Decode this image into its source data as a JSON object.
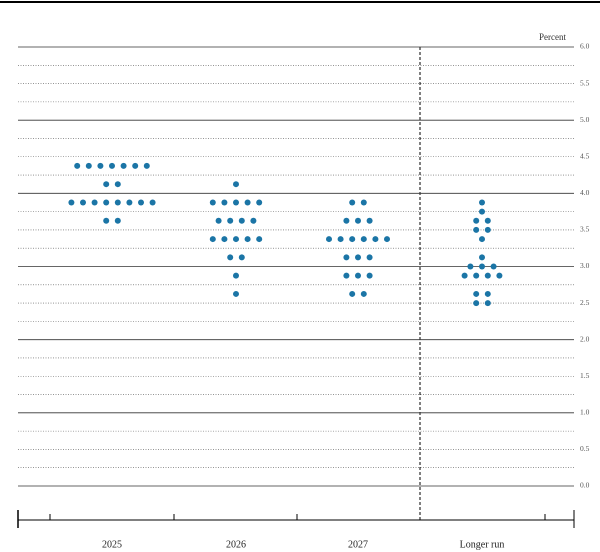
{
  "chart_data": {
    "type": "dot",
    "y_axis_label": "Percent",
    "categories": [
      "2025",
      "2026",
      "2027",
      "Longer run"
    ],
    "values": [
      [
        4.375,
        4.375,
        4.375,
        4.375,
        4.375,
        4.375,
        4.375,
        4.125,
        4.125,
        3.875,
        3.875,
        3.875,
        3.875,
        3.875,
        3.875,
        3.875,
        3.875,
        3.625,
        3.625
      ],
      [
        4.125,
        3.875,
        3.875,
        3.875,
        3.875,
        3.875,
        3.625,
        3.625,
        3.625,
        3.625,
        3.375,
        3.375,
        3.375,
        3.375,
        3.375,
        3.125,
        3.125,
        2.875,
        2.625
      ],
      [
        3.875,
        3.875,
        3.625,
        3.625,
        3.625,
        3.375,
        3.375,
        3.375,
        3.375,
        3.375,
        3.375,
        3.125,
        3.125,
        3.125,
        2.875,
        2.875,
        2.875,
        2.625,
        2.625
      ],
      [
        3.875,
        3.75,
        3.625,
        3.625,
        3.5,
        3.5,
        3.375,
        3.125,
        3.0,
        3.0,
        3.0,
        2.875,
        2.875,
        2.875,
        2.875,
        2.625,
        2.625,
        2.5,
        2.5
      ]
    ],
    "color": "#1b75a6",
    "ylim": [
      0,
      6
    ],
    "yticks": [
      {
        "value": 0,
        "label": "0.0"
      },
      {
        "value": 0.5,
        "label": "0.5"
      },
      {
        "value": 1,
        "label": "1.0"
      },
      {
        "value": 1.5,
        "label": "1.5"
      },
      {
        "value": 2,
        "label": "2.0"
      },
      {
        "value": 2.5,
        "label": "2.5"
      },
      {
        "value": 3,
        "label": "3.0"
      },
      {
        "value": 3.5,
        "label": "3.5"
      },
      {
        "value": 4,
        "label": "4.0"
      },
      {
        "value": 4.5,
        "label": "4.5"
      },
      {
        "value": 5,
        "label": "5.0"
      },
      {
        "value": 5.5,
        "label": "5.5"
      },
      {
        "value": 6,
        "label": "6.0"
      }
    ],
    "minor_yticks": [
      0.25,
      0.75,
      1.25,
      1.75,
      2.25,
      2.75,
      3.25,
      3.75,
      4.25,
      4.75,
      5.25,
      5.75
    ],
    "grid": true
  }
}
